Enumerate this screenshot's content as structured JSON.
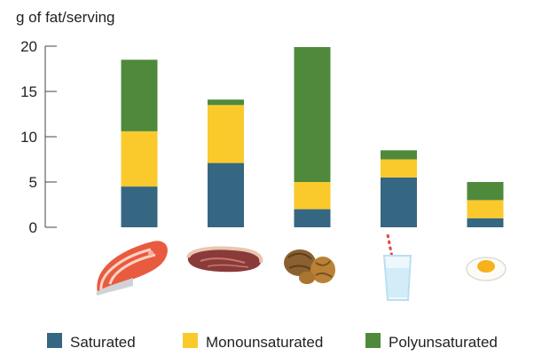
{
  "chart_data": {
    "type": "bar",
    "stacked": true,
    "ylabel": "g of fat/serving",
    "ylim": [
      0,
      20
    ],
    "yticks": [
      0,
      5,
      10,
      15,
      20
    ],
    "grid": false,
    "legend_position": "bottom",
    "categories": [
      {
        "name": "salmon",
        "icon": "salmon-steak-icon"
      },
      {
        "name": "beef",
        "icon": "beef-steak-icon"
      },
      {
        "name": "walnuts",
        "icon": "walnuts-icon"
      },
      {
        "name": "milk",
        "icon": "milk-glass-icon"
      },
      {
        "name": "egg",
        "icon": "boiled-egg-icon"
      }
    ],
    "series": [
      {
        "name": "Saturated",
        "color": "#356782",
        "values": [
          4.5,
          7.1,
          2.0,
          5.5,
          1.0
        ]
      },
      {
        "name": "Monounsaturated",
        "color": "#fac92c",
        "values": [
          6.1,
          6.4,
          3.0,
          2.0,
          2.0
        ]
      },
      {
        "name": "Polyunsaturated",
        "color": "#4f8a3c",
        "values": [
          7.9,
          0.6,
          14.9,
          1.0,
          2.0
        ]
      }
    ]
  }
}
